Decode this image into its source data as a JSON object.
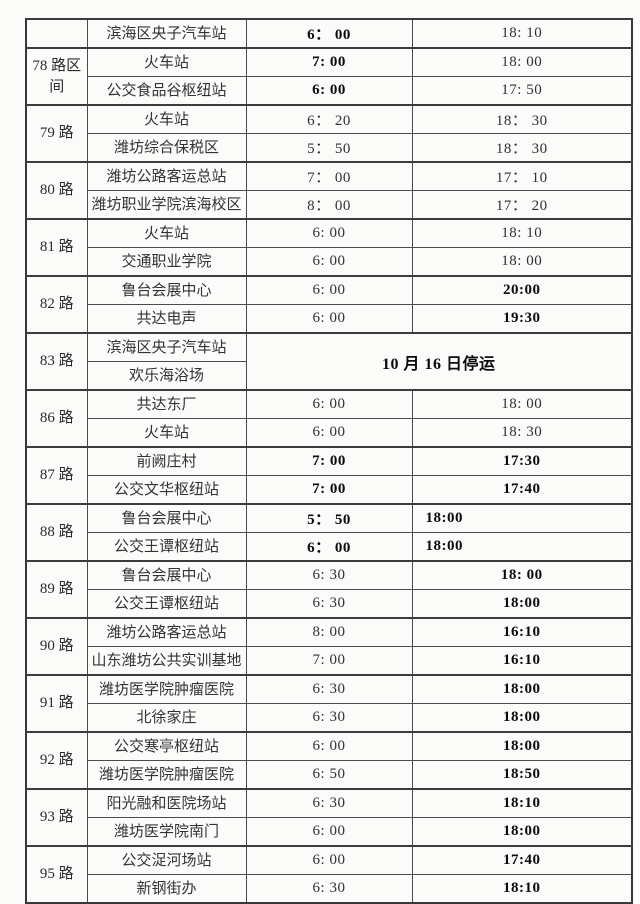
{
  "page": {
    "background_color": "#fbfbfa",
    "border_color": "#3c3c3c",
    "text_color": "#2e2e2e"
  },
  "timetable": {
    "groups": [
      {
        "route": "",
        "rows": [
          {
            "station": "滨海区央子汽车站",
            "first": "6： 00",
            "fb": true,
            "last": "18: 10",
            "lb": false
          }
        ]
      },
      {
        "route": "78 路区间",
        "rows": [
          {
            "station": "火车站",
            "first": "7: 00",
            "fb": true,
            "last": "18: 00",
            "lb": false
          },
          {
            "station": "公交食品谷枢纽站",
            "first": "6: 00",
            "fb": true,
            "last": "17: 50",
            "lb": false
          }
        ]
      },
      {
        "route": "79 路",
        "rows": [
          {
            "station": "火车站",
            "first": "6： 20",
            "fb": false,
            "last": "18： 30",
            "lb": false
          },
          {
            "station": "潍坊综合保税区",
            "first": "5： 50",
            "fb": false,
            "last": "18： 30",
            "lb": false
          }
        ]
      },
      {
        "route": "80 路",
        "rows": [
          {
            "station": "潍坊公路客运总站",
            "first": "7： 00",
            "fb": false,
            "last": "17： 10",
            "lb": false
          },
          {
            "station": "潍坊职业学院滨海校区",
            "first": "8： 00",
            "fb": false,
            "last": "17： 20",
            "lb": false
          }
        ]
      },
      {
        "route": "81 路",
        "rows": [
          {
            "station": "火车站",
            "first": "6: 00",
            "fb": false,
            "last": "18: 10",
            "lb": false
          },
          {
            "station": "交通职业学院",
            "first": "6: 00",
            "fb": false,
            "last": "18: 00",
            "lb": false
          }
        ]
      },
      {
        "route": "82 路",
        "rows": [
          {
            "station": "鲁台会展中心",
            "first": "6: 00",
            "fb": false,
            "last": "20:00",
            "lb": true
          },
          {
            "station": "共达电声",
            "first": "6: 00",
            "fb": false,
            "last": "19:30",
            "lb": true
          }
        ]
      },
      {
        "route": "83 路",
        "suspended": true,
        "notice": "10 月 16 日停运",
        "rows": [
          {
            "station": "滨海区央子汽车站"
          },
          {
            "station": "欢乐海浴场"
          }
        ]
      },
      {
        "route": "86 路",
        "rows": [
          {
            "station": "共达东厂",
            "first": "6: 00",
            "fb": false,
            "last": "18: 00",
            "lb": false
          },
          {
            "station": "火车站",
            "first": "6: 00",
            "fb": false,
            "last": "18: 30",
            "lb": false
          }
        ]
      },
      {
        "route": "87 路",
        "rows": [
          {
            "station": "前阙庄村",
            "first": "7: 00",
            "fb": true,
            "last": "17:30",
            "lb": true
          },
          {
            "station": "公交文华枢纽站",
            "first": "7: 00",
            "fb": true,
            "last": "17:40",
            "lb": true
          }
        ]
      },
      {
        "route": "88 路",
        "rows": [
          {
            "station": "鲁台会展中心",
            "first": "5： 50",
            "fb": true,
            "last": "18:00",
            "lb": true,
            "last_align": "left"
          },
          {
            "station": "公交王谭枢纽站",
            "first": "6： 00",
            "fb": true,
            "last": "18:00",
            "lb": true,
            "last_align": "left"
          }
        ]
      },
      {
        "route": "89 路",
        "rows": [
          {
            "station": "鲁台会展中心",
            "first": "6: 30",
            "fb": false,
            "last": "18: 00",
            "lb": true
          },
          {
            "station": "公交王谭枢纽站",
            "first": "6: 30",
            "fb": false,
            "last": "18:00",
            "lb": true
          }
        ]
      },
      {
        "route": "90 路",
        "rows": [
          {
            "station": "潍坊公路客运总站",
            "first": "8: 00",
            "fb": false,
            "last": "16:10",
            "lb": true
          },
          {
            "station": "山东潍坊公共实训基地",
            "first": "7: 00",
            "fb": false,
            "last": "16:10",
            "lb": true
          }
        ]
      },
      {
        "route": "91 路",
        "rows": [
          {
            "station": "潍坊医学院肿瘤医院",
            "first": "6: 30",
            "fb": false,
            "last": "18:00",
            "lb": true
          },
          {
            "station": "北徐家庄",
            "first": "6: 30",
            "fb": false,
            "last": "18:00",
            "lb": true
          }
        ]
      },
      {
        "route": "92 路",
        "rows": [
          {
            "station": "公交寒亭枢纽站",
            "first": "6: 00",
            "fb": false,
            "last": "18:00",
            "lb": true
          },
          {
            "station": "潍坊医学院肿瘤医院",
            "first": "6: 50",
            "fb": false,
            "last": "18:50",
            "lb": true
          }
        ]
      },
      {
        "route": "93 路",
        "rows": [
          {
            "station": "阳光融和医院场站",
            "first": "6: 30",
            "fb": false,
            "last": "18:10",
            "lb": true
          },
          {
            "station": "潍坊医学院南门",
            "first": "6: 00",
            "fb": false,
            "last": "18:00",
            "lb": true
          }
        ]
      },
      {
        "route": "95 路",
        "rows": [
          {
            "station": "公交浞河场站",
            "first": "6: 00",
            "fb": false,
            "last": "17:40",
            "lb": true
          },
          {
            "station": "新钢街办",
            "first": "6: 30",
            "fb": false,
            "last": "18:10",
            "lb": true
          }
        ]
      }
    ]
  }
}
